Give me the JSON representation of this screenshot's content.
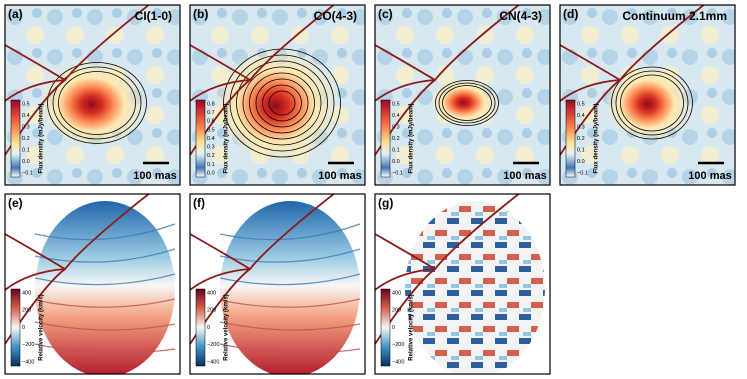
{
  "panels": [
    {
      "label": "(a)",
      "title": "CI(1-0)",
      "colorbar_label": "Flux density (mJy/beam)",
      "colorbar_ticks": [
        "0.5",
        "0.4",
        "0.3",
        "0.2",
        "0.1",
        "0.0",
        "−0.1"
      ],
      "scale_bar": "100 mas"
    },
    {
      "label": "(b)",
      "title": "CO(4-3)",
      "colorbar_label": "Flux density (mJy/beam)",
      "colorbar_ticks": [
        "0.8",
        "0.7",
        "0.6",
        "0.5",
        "0.4",
        "0.3",
        "0.2",
        "0.1",
        "0.0"
      ],
      "scale_bar": "100 mas"
    },
    {
      "label": "(c)",
      "title": "CN(4-3)",
      "colorbar_label": "Flux density (mJy/beam)",
      "colorbar_ticks": [
        "0.5",
        "0.4",
        "0.3",
        "0.2",
        "0.1",
        "0.0",
        "−0.1"
      ],
      "scale_bar": "100 mas"
    },
    {
      "label": "(d)",
      "title": "Continuum 2.1mm",
      "colorbar_label": "Flux density (mJy/beam)",
      "colorbar_ticks": [
        "0.5",
        "0.4",
        "0.3",
        "0.2",
        "0.1",
        "0.0",
        "−0.1"
      ],
      "scale_bar": "100 mas"
    },
    {
      "label": "(e)",
      "colorbar_label": "Relative velocity (km/s)",
      "colorbar_ticks": [
        "400",
        "200",
        "0",
        "−200",
        "−400"
      ]
    },
    {
      "label": "(f)",
      "colorbar_label": "Relative velocity (km/s)",
      "colorbar_ticks": [
        "400",
        "200",
        "0",
        "−200",
        "−400"
      ]
    },
    {
      "label": "(g)",
      "colorbar_label": "Relative velocity (km/s)",
      "colorbar_ticks": [
        "400",
        "200",
        "0",
        "−200",
        "−400"
      ]
    }
  ]
}
